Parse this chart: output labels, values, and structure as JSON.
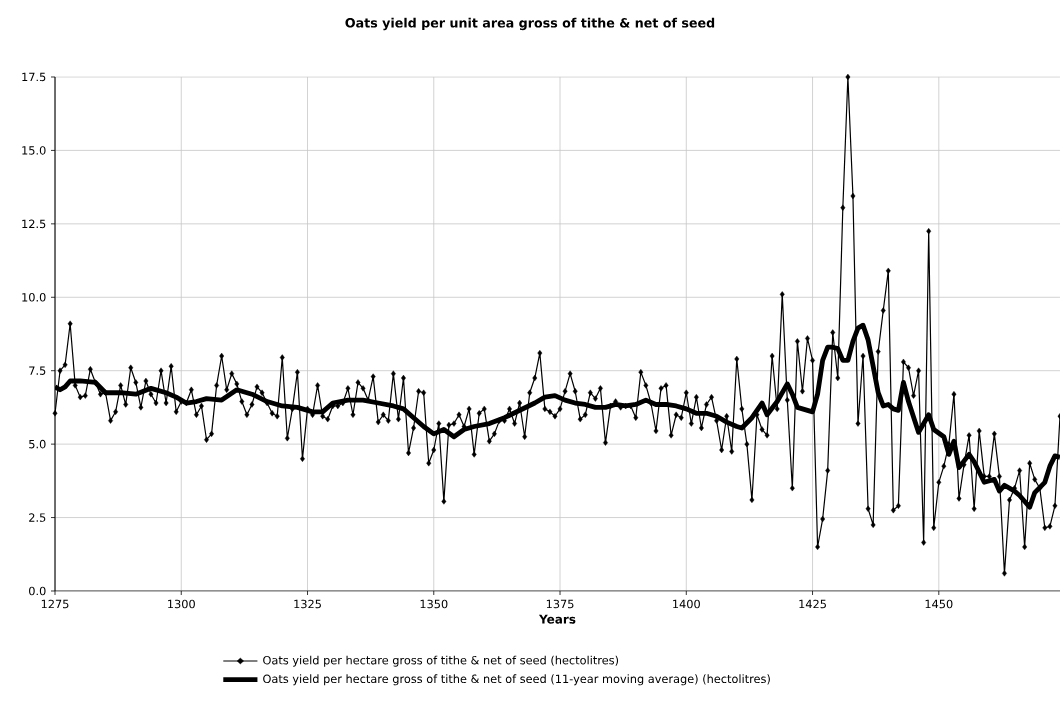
{
  "chart_data": {
    "type": "line",
    "title": "Oats yield per unit area gross of tithe & net of seed",
    "xlabel": "Years",
    "xlim": [
      1275,
      1474
    ],
    "xticks": [
      1275,
      1300,
      1325,
      1350,
      1375,
      1400,
      1425,
      1450
    ],
    "ylim": [
      0,
      17.5
    ],
    "yticks": [
      {
        "value": 0,
        "label": "0.0"
      },
      {
        "value": 2.5,
        "label": "2.5"
      },
      {
        "value": 5,
        "label": "5.0"
      },
      {
        "value": 7.5,
        "label": "7.5"
      },
      {
        "value": 10,
        "label": "10.0"
      },
      {
        "value": 12.5,
        "label": "12.5"
      },
      {
        "value": 15,
        "label": "15.0"
      },
      {
        "value": 17.5,
        "label": "17.5"
      }
    ],
    "grid": true,
    "legend": "bottom",
    "series": [
      {
        "name": "Oats yield per hectare gross of tithe & net of seed (hectolitres)",
        "color": "#000000",
        "marker": "diamond",
        "x": [
          1275,
          1276,
          1277,
          1278,
          1279,
          1280,
          1281,
          1282,
          1283,
          1284,
          1285,
          1286,
          1287,
          1288,
          1289,
          1290,
          1291,
          1292,
          1293,
          1294,
          1295,
          1296,
          1297,
          1298,
          1299,
          1300,
          1301,
          1302,
          1303,
          1304,
          1305,
          1306,
          1307,
          1308,
          1309,
          1310,
          1311,
          1312,
          1313,
          1314,
          1315,
          1316,
          1317,
          1318,
          1319,
          1320,
          1321,
          1322,
          1323,
          1324,
          1325,
          1326,
          1327,
          1328,
          1329,
          1330,
          1331,
          1332,
          1333,
          1334,
          1335,
          1336,
          1337,
          1338,
          1339,
          1340,
          1341,
          1342,
          1343,
          1344,
          1345,
          1346,
          1347,
          1348,
          1349,
          1350,
          1351,
          1352,
          1353,
          1354,
          1355,
          1356,
          1357,
          1358,
          1359,
          1360,
          1361,
          1362,
          1363,
          1364,
          1365,
          1366,
          1367,
          1368,
          1369,
          1370,
          1371,
          1372,
          1373,
          1374,
          1375,
          1376,
          1377,
          1378,
          1379,
          1380,
          1381,
          1382,
          1383,
          1384,
          1385,
          1386,
          1387,
          1388,
          1389,
          1390,
          1391,
          1392,
          1393,
          1394,
          1395,
          1396,
          1397,
          1398,
          1399,
          1400,
          1401,
          1402,
          1403,
          1404,
          1405,
          1406,
          1407,
          1408,
          1409,
          1410,
          1411,
          1412,
          1413,
          1414,
          1415,
          1416,
          1417,
          1418,
          1419,
          1420,
          1421,
          1422,
          1423,
          1424,
          1425,
          1426,
          1427,
          1428,
          1429,
          1430,
          1431,
          1432,
          1433,
          1434,
          1435,
          1436,
          1437,
          1438,
          1439,
          1440,
          1441,
          1442,
          1443,
          1444,
          1445,
          1446,
          1447,
          1448,
          1449,
          1450,
          1451,
          1452,
          1453,
          1454,
          1455,
          1456,
          1457,
          1458,
          1459,
          1460,
          1461,
          1462,
          1463,
          1464,
          1465,
          1466,
          1467,
          1468,
          1469,
          1470,
          1471,
          1472,
          1473,
          1474
        ],
        "values": [
          6.05,
          7.5,
          7.7,
          9.1,
          7.0,
          6.6,
          6.65,
          7.55,
          7.1,
          6.7,
          6.75,
          5.8,
          6.1,
          7.0,
          6.35,
          7.6,
          7.1,
          6.25,
          7.15,
          6.7,
          6.4,
          7.5,
          6.4,
          7.65,
          6.1,
          6.45,
          6.4,
          6.85,
          6.0,
          6.3,
          5.15,
          5.35,
          7.0,
          8.0,
          6.85,
          7.4,
          7.05,
          6.45,
          6.0,
          6.35,
          6.95,
          6.75,
          6.4,
          6.05,
          5.95,
          7.95,
          5.2,
          6.2,
          7.45,
          4.5,
          6.2,
          6.0,
          7.0,
          5.95,
          5.85,
          6.3,
          6.3,
          6.4,
          6.9,
          6.0,
          7.1,
          6.9,
          6.5,
          7.3,
          5.75,
          6.0,
          5.8,
          7.4,
          5.85,
          7.25,
          4.7,
          5.55,
          6.8,
          6.75,
          4.35,
          4.8,
          5.7,
          3.05,
          5.65,
          5.7,
          6.0,
          5.6,
          6.2,
          4.65,
          6.05,
          6.2,
          5.1,
          5.35,
          5.8,
          5.8,
          6.2,
          5.7,
          6.4,
          5.25,
          6.75,
          7.25,
          8.1,
          6.2,
          6.1,
          5.95,
          6.2,
          6.8,
          7.4,
          6.8,
          5.85,
          6.0,
          6.75,
          6.55,
          6.9,
          5.05,
          6.3,
          6.45,
          6.25,
          6.3,
          6.3,
          5.9,
          7.45,
          7.0,
          6.4,
          5.45,
          6.9,
          7.0,
          5.3,
          6.0,
          5.9,
          6.75,
          5.7,
          6.6,
          5.55,
          6.35,
          6.6,
          5.8,
          4.8,
          5.95,
          4.75,
          7.9,
          6.2,
          5.0,
          3.1,
          6.0,
          5.5,
          5.3,
          8.0,
          6.2,
          10.1,
          6.5,
          3.5,
          8.5,
          6.8,
          8.6,
          7.85,
          1.5,
          2.45,
          4.1,
          8.8,
          7.25,
          13.05,
          17.5,
          13.45,
          5.7,
          8.0,
          2.8,
          2.25,
          8.15,
          9.55,
          10.9,
          2.75,
          2.9,
          7.8,
          7.6,
          6.65,
          7.5,
          1.65,
          12.25,
          2.15,
          3.7,
          4.25,
          5.0,
          6.7,
          3.15,
          4.3,
          5.3,
          2.8,
          5.45,
          3.9,
          3.9,
          5.35,
          3.9,
          0.6,
          3.1,
          3.5,
          4.1,
          1.5,
          4.35,
          3.8,
          3.5,
          2.15,
          2.2,
          2.9,
          5.95
        ]
      },
      {
        "name": "Oats yield per hectare gross of tithe & net of seed (11-year moving average) (hectolitres)",
        "color": "#000000",
        "marker": "none",
        "x": [
          1275,
          1276,
          1277,
          1278,
          1280,
          1283,
          1285,
          1288,
          1291,
          1294,
          1297,
          1299,
          1301,
          1303,
          1305,
          1308,
          1311,
          1314,
          1317,
          1320,
          1323,
          1326,
          1328,
          1330,
          1333,
          1336,
          1339,
          1342,
          1344,
          1346,
          1348,
          1350,
          1352,
          1354,
          1356,
          1358,
          1361,
          1364,
          1367,
          1370,
          1372,
          1374,
          1376,
          1378,
          1380,
          1382,
          1384,
          1386,
          1388,
          1390,
          1392,
          1394,
          1396,
          1398,
          1400,
          1402,
          1404,
          1406,
          1408,
          1410,
          1411,
          1413,
          1415,
          1416,
          1418,
          1420,
          1421,
          1422,
          1423,
          1425,
          1426,
          1427,
          1428,
          1429,
          1430,
          1431,
          1432,
          1433,
          1434,
          1435,
          1436,
          1437,
          1438,
          1439,
          1440,
          1441,
          1442,
          1443,
          1444,
          1446,
          1448,
          1449,
          1451,
          1452,
          1453,
          1454,
          1456,
          1457,
          1459,
          1461,
          1462,
          1463,
          1465,
          1466,
          1468,
          1469,
          1471,
          1472,
          1473,
          1474
        ],
        "values": [
          6.95,
          6.85,
          6.95,
          7.15,
          7.15,
          7.1,
          6.75,
          6.75,
          6.7,
          6.9,
          6.75,
          6.6,
          6.4,
          6.45,
          6.55,
          6.5,
          6.85,
          6.7,
          6.45,
          6.3,
          6.25,
          6.1,
          6.1,
          6.4,
          6.5,
          6.5,
          6.4,
          6.3,
          6.2,
          5.9,
          5.6,
          5.35,
          5.5,
          5.25,
          5.5,
          5.6,
          5.7,
          5.9,
          6.15,
          6.4,
          6.6,
          6.65,
          6.5,
          6.4,
          6.35,
          6.25,
          6.25,
          6.35,
          6.3,
          6.35,
          6.5,
          6.35,
          6.35,
          6.3,
          6.2,
          6.05,
          6.05,
          5.95,
          5.75,
          5.6,
          5.55,
          5.9,
          6.4,
          6.0,
          6.45,
          7.05,
          6.7,
          6.25,
          6.2,
          6.1,
          6.7,
          7.85,
          8.3,
          8.3,
          8.25,
          7.85,
          7.85,
          8.5,
          8.95,
          9.05,
          8.55,
          7.65,
          6.75,
          6.3,
          6.35,
          6.2,
          6.15,
          7.1,
          6.45,
          5.4,
          6.0,
          5.5,
          5.25,
          4.65,
          5.1,
          4.2,
          4.65,
          4.4,
          3.7,
          3.8,
          3.4,
          3.6,
          3.4,
          3.25,
          2.85,
          3.35,
          3.7,
          4.25,
          4.6,
          4.55
        ]
      }
    ]
  }
}
